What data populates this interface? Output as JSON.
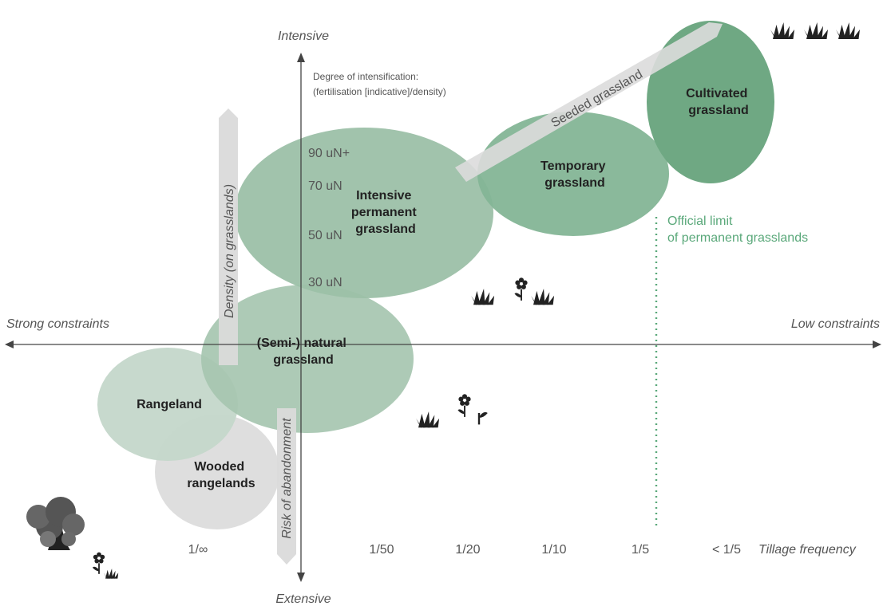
{
  "axes": {
    "top": "Intensive",
    "bottom": "Extensive",
    "left": "Strong constraints",
    "right": "Low constraints",
    "x_title": "Tillage frequency",
    "y_title_line1": "Degree of intensification:",
    "y_title_line2": "(fertilisation [indicative]/density)"
  },
  "x_ticks": [
    "1/∞",
    "1/50",
    "1/20",
    "1/10",
    "1/5",
    "< 1/5"
  ],
  "y_ticks": [
    "90 uN+",
    "70 uN",
    "50 uN",
    "30 uN"
  ],
  "regions": {
    "cultivated": [
      "Cultivated",
      "grassland"
    ],
    "temporary": [
      "Temporary",
      "grassland"
    ],
    "intensive": [
      "Intensive",
      "permanent",
      "grassland"
    ],
    "seminatural": [
      "(Semi-) natural",
      "grassland"
    ],
    "rangeland": [
      "Rangeland"
    ],
    "wooded": [
      "Wooded",
      "rangelands"
    ]
  },
  "arrows": {
    "seeded": "Seeded grassland",
    "density": "Density (on grasslands)",
    "abandonment": "Risk of abandonment"
  },
  "limit": {
    "line1": "Official limit",
    "line2": "of permanent grasslands"
  },
  "colors": {
    "cultivated": "#6fa883",
    "temporary": "#84b596",
    "intensive": "#9cc0a8",
    "seminatural": "#a6c6b0",
    "rangeland": "#c4d7ca",
    "wooded": "#dedede",
    "limit_line": "#5aa87a"
  }
}
